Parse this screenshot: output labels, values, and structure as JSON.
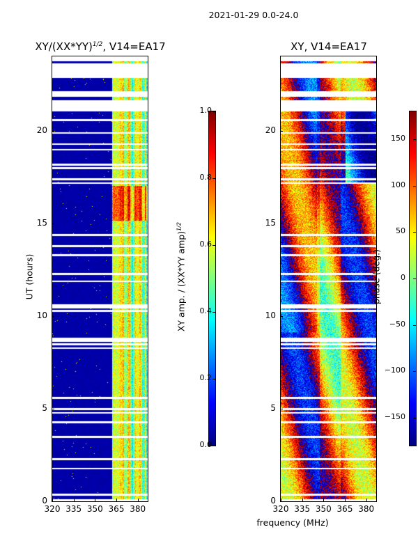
{
  "suptitle": "2021-01-29 0.0-24.0",
  "xlabel": "frequency (MHz)",
  "chart_data": [
    {
      "type": "heatmap",
      "title_main": "XY/(XX*YY)",
      "title_sup": "1/2",
      "title_tail": ", V14=EA17",
      "xlabel": "frequency (MHz)",
      "ylabel": "UT (hours)",
      "xlim": [
        320,
        387
      ],
      "ylim": [
        0,
        24
      ],
      "xticks": [
        "320",
        "335",
        "350",
        "365",
        "380"
      ],
      "yticks": [
        "0",
        "5",
        "10",
        "15",
        "20"
      ],
      "colorbar": {
        "label": "XY amp. / (XX*YY amp)",
        "label_sup": "1/2",
        "range": [
          0.0,
          1.0
        ],
        "ticks": [
          "0.0",
          "0.2",
          "0.4",
          "0.6",
          "0.8",
          "1.0"
        ],
        "colormap": "jet"
      }
    },
    {
      "type": "heatmap",
      "title_main": "XY, V14=EA17",
      "xlabel": "frequency (MHz)",
      "ylabel": "",
      "xlim": [
        320,
        387
      ],
      "ylim": [
        0,
        24
      ],
      "xticks": [
        "320",
        "335",
        "350",
        "365",
        "380"
      ],
      "yticks": [
        "0",
        "5",
        "10",
        "15",
        "20"
      ],
      "colorbar": {
        "label": "phase (deg.)",
        "range": [
          -180,
          180
        ],
        "ticks": [
          "−150",
          "−100",
          "−50",
          "0",
          "50",
          "100",
          "150"
        ],
        "colormap": "jet"
      }
    }
  ]
}
